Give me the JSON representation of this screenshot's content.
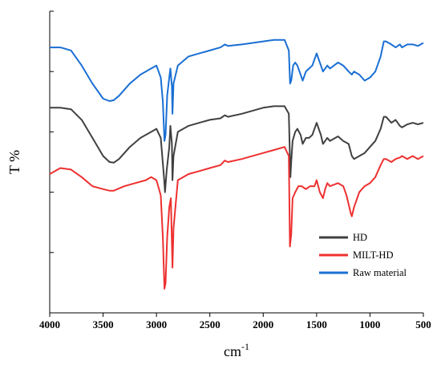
{
  "chart_data": {
    "type": "line",
    "title": "",
    "xlabel": "cm-1",
    "xlabel_base": "cm",
    "xlabel_sup": "-1",
    "ylabel": "T %",
    "xlim": [
      4000,
      500
    ],
    "x_reversed": true,
    "xticks": [
      4000,
      3500,
      3000,
      2500,
      2000,
      1500,
      1000,
      500
    ],
    "xtick_labels": [
      "4000",
      "3500",
      "3000",
      "2500",
      "2000",
      "1500",
      "1000",
      "500"
    ],
    "ylim": [
      0,
      100
    ],
    "y_tick_labels_shown": false,
    "grid": false,
    "legend_position": "bottom-right",
    "series": [
      {
        "name": "HD",
        "color": "#404040",
        "points": [
          [
            4000,
            68
          ],
          [
            3900,
            68
          ],
          [
            3800,
            67.5
          ],
          [
            3700,
            64
          ],
          [
            3600,
            58
          ],
          [
            3500,
            52
          ],
          [
            3440,
            50
          ],
          [
            3400,
            49.8
          ],
          [
            3350,
            51
          ],
          [
            3250,
            55
          ],
          [
            3150,
            58
          ],
          [
            3050,
            60
          ],
          [
            3000,
            61
          ],
          [
            2960,
            58
          ],
          [
            2930,
            45
          ],
          [
            2920,
            40
          ],
          [
            2905,
            47
          ],
          [
            2880,
            55
          ],
          [
            2870,
            62
          ],
          [
            2855,
            56
          ],
          [
            2850,
            44
          ],
          [
            2840,
            52
          ],
          [
            2800,
            60
          ],
          [
            2700,
            62
          ],
          [
            2600,
            63
          ],
          [
            2500,
            64
          ],
          [
            2400,
            64.5
          ],
          [
            2360,
            65.5
          ],
          [
            2330,
            65
          ],
          [
            2200,
            66
          ],
          [
            2000,
            68
          ],
          [
            1900,
            68.5
          ],
          [
            1800,
            68.5
          ],
          [
            1760,
            66
          ],
          [
            1745,
            45
          ],
          [
            1738,
            50
          ],
          [
            1725,
            57
          ],
          [
            1700,
            60
          ],
          [
            1680,
            61
          ],
          [
            1650,
            59
          ],
          [
            1630,
            56
          ],
          [
            1600,
            58
          ],
          [
            1570,
            58
          ],
          [
            1540,
            59
          ],
          [
            1500,
            63
          ],
          [
            1460,
            59
          ],
          [
            1440,
            56
          ],
          [
            1400,
            58
          ],
          [
            1375,
            57
          ],
          [
            1300,
            58.5
          ],
          [
            1250,
            57
          ],
          [
            1200,
            56
          ],
          [
            1170,
            52
          ],
          [
            1150,
            51
          ],
          [
            1100,
            52
          ],
          [
            1050,
            53
          ],
          [
            1000,
            55
          ],
          [
            950,
            57
          ],
          [
            900,
            61
          ],
          [
            870,
            65
          ],
          [
            850,
            65
          ],
          [
            800,
            63
          ],
          [
            760,
            64
          ],
          [
            720,
            62
          ],
          [
            700,
            61.5
          ],
          [
            650,
            62.5
          ],
          [
            600,
            63
          ],
          [
            550,
            62.5
          ],
          [
            500,
            63
          ]
        ]
      },
      {
        "name": "MILT-HD",
        "color": "#ee3030",
        "points": [
          [
            4000,
            46
          ],
          [
            3900,
            48
          ],
          [
            3800,
            47.5
          ],
          [
            3700,
            45
          ],
          [
            3600,
            42
          ],
          [
            3500,
            41
          ],
          [
            3440,
            40.5
          ],
          [
            3400,
            40.5
          ],
          [
            3300,
            42
          ],
          [
            3200,
            43
          ],
          [
            3100,
            44
          ],
          [
            3050,
            45
          ],
          [
            3000,
            44
          ],
          [
            2960,
            39
          ],
          [
            2940,
            25
          ],
          [
            2925,
            8
          ],
          [
            2915,
            10
          ],
          [
            2900,
            25
          ],
          [
            2880,
            35
          ],
          [
            2865,
            38
          ],
          [
            2850,
            15
          ],
          [
            2840,
            28
          ],
          [
            2800,
            44
          ],
          [
            2700,
            46
          ],
          [
            2600,
            47
          ],
          [
            2500,
            48
          ],
          [
            2400,
            49
          ],
          [
            2360,
            50.5
          ],
          [
            2330,
            50
          ],
          [
            2200,
            51
          ],
          [
            2000,
            53
          ],
          [
            1900,
            54
          ],
          [
            1800,
            55
          ],
          [
            1760,
            52
          ],
          [
            1750,
            22
          ],
          [
            1738,
            26
          ],
          [
            1725,
            38
          ],
          [
            1700,
            40
          ],
          [
            1670,
            42
          ],
          [
            1640,
            42
          ],
          [
            1600,
            41
          ],
          [
            1560,
            42
          ],
          [
            1520,
            42
          ],
          [
            1500,
            44
          ],
          [
            1470,
            40
          ],
          [
            1440,
            38
          ],
          [
            1420,
            41
          ],
          [
            1400,
            43
          ],
          [
            1375,
            42
          ],
          [
            1300,
            43
          ],
          [
            1250,
            42
          ],
          [
            1220,
            39
          ],
          [
            1180,
            33
          ],
          [
            1170,
            32
          ],
          [
            1150,
            35
          ],
          [
            1100,
            40
          ],
          [
            1050,
            42
          ],
          [
            1000,
            43
          ],
          [
            950,
            45
          ],
          [
            900,
            49
          ],
          [
            870,
            51
          ],
          [
            850,
            51
          ],
          [
            800,
            50
          ],
          [
            760,
            51
          ],
          [
            720,
            51.5
          ],
          [
            700,
            52
          ],
          [
            650,
            51
          ],
          [
            600,
            52
          ],
          [
            550,
            51
          ],
          [
            500,
            52
          ]
        ]
      },
      {
        "name": "Raw material",
        "color": "#1a6fd4",
        "points": [
          [
            4000,
            88
          ],
          [
            3900,
            88
          ],
          [
            3800,
            87
          ],
          [
            3700,
            82
          ],
          [
            3600,
            76
          ],
          [
            3500,
            71
          ],
          [
            3440,
            70.2
          ],
          [
            3400,
            70.5
          ],
          [
            3350,
            72
          ],
          [
            3250,
            76
          ],
          [
            3150,
            79
          ],
          [
            3050,
            81
          ],
          [
            3000,
            82
          ],
          [
            2960,
            78
          ],
          [
            2940,
            70
          ],
          [
            2925,
            57
          ],
          [
            2915,
            59
          ],
          [
            2900,
            72
          ],
          [
            2880,
            78
          ],
          [
            2870,
            81
          ],
          [
            2855,
            75
          ],
          [
            2850,
            66
          ],
          [
            2840,
            76
          ],
          [
            2800,
            82
          ],
          [
            2700,
            85
          ],
          [
            2600,
            86
          ],
          [
            2500,
            87
          ],
          [
            2400,
            88
          ],
          [
            2360,
            89
          ],
          [
            2330,
            88.5
          ],
          [
            2200,
            89
          ],
          [
            2000,
            90
          ],
          [
            1900,
            90.5
          ],
          [
            1800,
            90.5
          ],
          [
            1760,
            87
          ],
          [
            1748,
            76
          ],
          [
            1738,
            77
          ],
          [
            1720,
            82
          ],
          [
            1700,
            83
          ],
          [
            1680,
            82
          ],
          [
            1650,
            79
          ],
          [
            1630,
            77
          ],
          [
            1600,
            80
          ],
          [
            1570,
            81
          ],
          [
            1540,
            82
          ],
          [
            1500,
            86
          ],
          [
            1460,
            82
          ],
          [
            1440,
            80
          ],
          [
            1400,
            82
          ],
          [
            1375,
            81
          ],
          [
            1300,
            83
          ],
          [
            1250,
            82
          ],
          [
            1200,
            80
          ],
          [
            1170,
            79
          ],
          [
            1150,
            80
          ],
          [
            1100,
            79
          ],
          [
            1050,
            77
          ],
          [
            1000,
            78
          ],
          [
            950,
            80
          ],
          [
            900,
            85
          ],
          [
            870,
            90
          ],
          [
            850,
            90
          ],
          [
            800,
            89
          ],
          [
            760,
            88
          ],
          [
            720,
            89
          ],
          [
            700,
            88
          ],
          [
            650,
            89
          ],
          [
            600,
            89
          ],
          [
            550,
            88.5
          ],
          [
            500,
            89.5
          ]
        ]
      }
    ]
  }
}
